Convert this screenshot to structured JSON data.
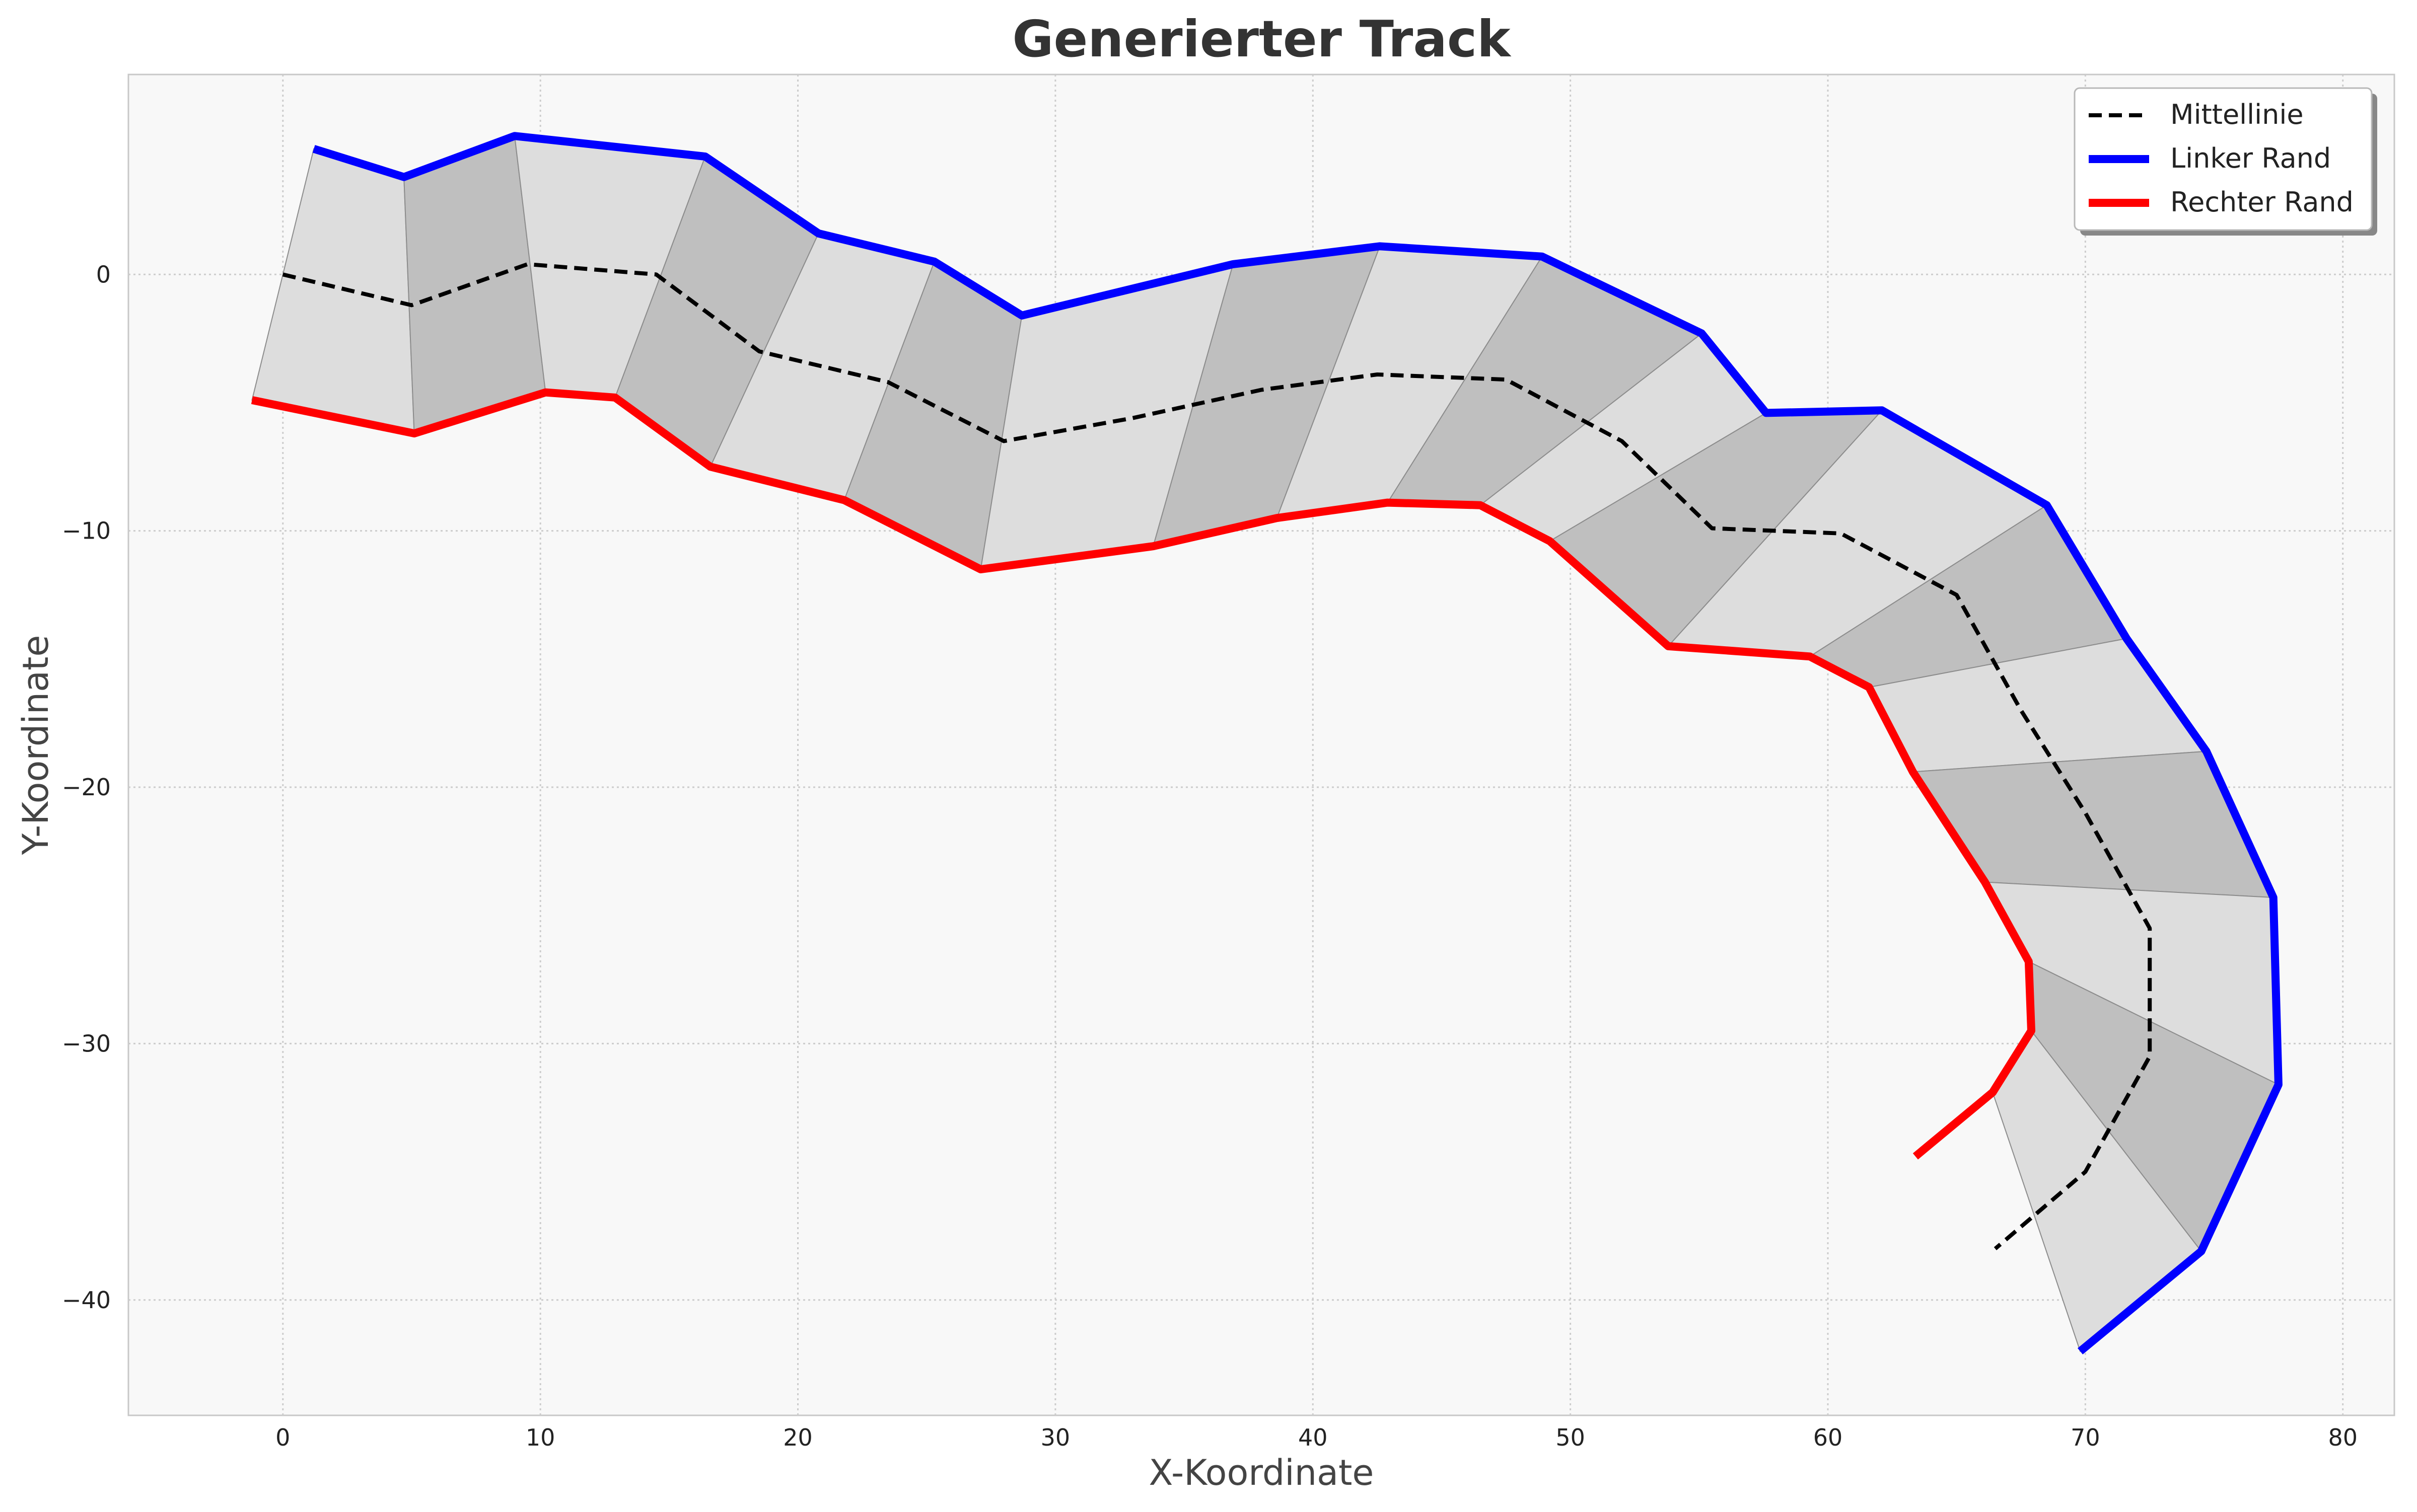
{
  "chart_data": {
    "type": "line",
    "title": "Generierter Track",
    "xlabel": "X-Koordinate",
    "ylabel": "Y-Koordinate",
    "xlim": [
      -6,
      82
    ],
    "ylim": [
      -44.5,
      7.8
    ],
    "xticks": [
      0,
      10,
      20,
      30,
      40,
      50,
      60,
      70,
      80
    ],
    "yticks": [
      0,
      -10,
      -20,
      -30,
      -40
    ],
    "grid": true,
    "legend_position": "top-right",
    "series": [
      {
        "name": "Mittellinie",
        "color": "#000000",
        "style": "dashed",
        "x": [
          0,
          5,
          9.5,
          14.5,
          18.5,
          23.5,
          28,
          33,
          38,
          42.5,
          47.5,
          52,
          55.5,
          60.5,
          65,
          67.5,
          70,
          72.5,
          72.5,
          70,
          66.5
        ],
        "y": [
          0,
          -1.2,
          0.4,
          0,
          -3,
          -4.2,
          -6.5,
          -5.6,
          -4.5,
          -3.9,
          -4.1,
          -6.5,
          -9.9,
          -10.1,
          -12.5,
          -17,
          -21,
          -25.5,
          -30.5,
          -35,
          -38
        ]
      },
      {
        "name": "Linker Rand",
        "color": "#0000ff",
        "style": "solid",
        "x": [
          1.2,
          4.7,
          9,
          16.4,
          20.8,
          25.3,
          28.7,
          36.9,
          42.6,
          48.9,
          55.1,
          57.6,
          62.1,
          68.5,
          71.6,
          74.7,
          77.3,
          77.5,
          74.5,
          69.8
        ],
        "y": [
          4.9,
          3.8,
          5.4,
          4.6,
          1.6,
          0.5,
          -1.6,
          0.4,
          1.1,
          0.7,
          -2.3,
          -5.4,
          -5.3,
          -9,
          -14.2,
          -18.6,
          -24.3,
          -31.6,
          -38.1,
          -42
        ]
      },
      {
        "name": "Rechter Rand",
        "color": "#ff0000",
        "style": "solid",
        "x": [
          -1.2,
          5.1,
          10.2,
          12.9,
          16.6,
          21.8,
          27.1,
          33.8,
          38.6,
          42.9,
          46.5,
          49.2,
          53.8,
          59.3,
          61.6,
          63.3,
          66.1,
          67.8,
          67.9,
          66.4,
          63.4
        ],
        "y": [
          -4.9,
          -6.2,
          -4.6,
          -4.8,
          -7.5,
          -8.8,
          -11.5,
          -10.6,
          -9.5,
          -8.9,
          -9,
          -10.4,
          -14.5,
          -14.9,
          -16.1,
          -19.4,
          -23.7,
          -26.8,
          -29.5,
          -31.9,
          -34.4
        ]
      }
    ]
  }
}
